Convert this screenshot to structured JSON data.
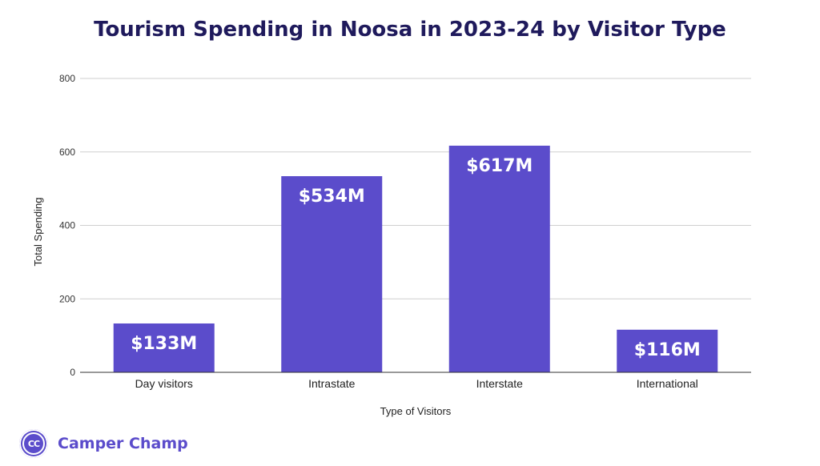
{
  "chart_data": {
    "type": "bar",
    "title": "Tourism Spending in Noosa in 2023-24 by Visitor Type",
    "xlabel": "Type of Visitors",
    "ylabel": "Total Spending",
    "categories": [
      "Day visitors",
      "Intrastate",
      "Interstate",
      "International"
    ],
    "values": [
      133,
      534,
      617,
      116
    ],
    "data_labels": [
      "$133M",
      "$534M",
      "$617M",
      "$116M"
    ],
    "ylim": [
      0,
      800
    ],
    "yticks": [
      0,
      200,
      400,
      600,
      800
    ],
    "grid": true,
    "legend": "none",
    "bar_color": "#5b4ccb"
  },
  "branding": {
    "badge_text": "CC",
    "name": "Camper Champ",
    "color": "#5b4ccb"
  }
}
